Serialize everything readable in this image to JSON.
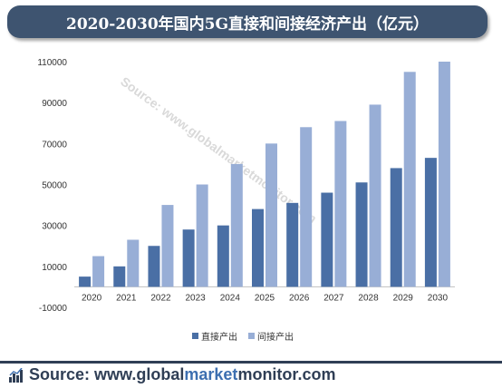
{
  "title": "2020-2030年国内5G直接和间接经济产出（亿元）",
  "watermark": "Source: www.globalmarketmonitor.com",
  "footer": {
    "source_label": "Source:",
    "source_url_parts": [
      "www.global",
      "market",
      "monitor",
      ".com"
    ]
  },
  "colors": {
    "direct": "#4a6fa5",
    "indirect": "#98aed6",
    "title_bg": "#3e5470",
    "footer_text": "#2f3e55",
    "footer_accent": "#3d6fb0"
  },
  "chart_data": {
    "type": "bar",
    "categories": [
      "2020",
      "2021",
      "2022",
      "2023",
      "2024",
      "2025",
      "2026",
      "2027",
      "2028",
      "2029",
      "2030"
    ],
    "series": [
      {
        "name": "直接产出",
        "values": [
          5000,
          10000,
          20000,
          28000,
          30000,
          38000,
          41000,
          46000,
          51000,
          58000,
          63000
        ]
      },
      {
        "name": "间接产出",
        "values": [
          15000,
          23000,
          40000,
          50000,
          60000,
          70000,
          78000,
          81000,
          89000,
          105000,
          110000
        ]
      }
    ],
    "y_ticks": [
      "-10000",
      "10000",
      "30000",
      "50000",
      "70000",
      "90000",
      "110000"
    ],
    "ylim": [
      -10000,
      110000
    ],
    "grid": false,
    "legend_position": "bottom"
  }
}
